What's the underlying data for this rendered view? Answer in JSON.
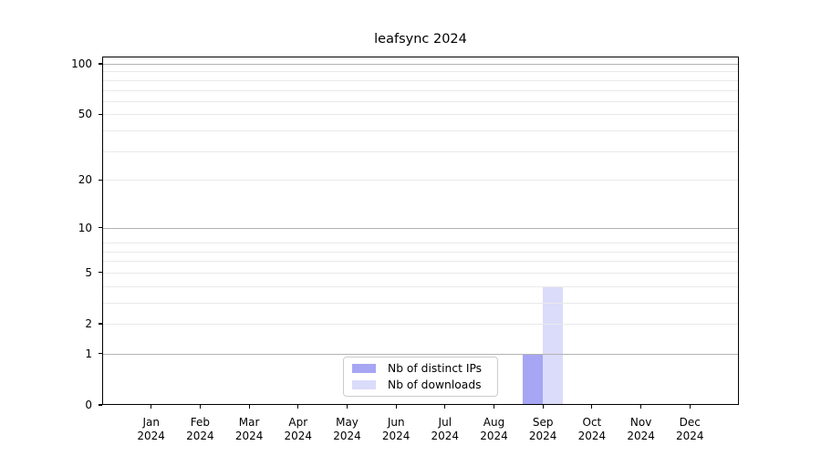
{
  "chart_data": {
    "type": "bar",
    "title": "leafsync 2024",
    "months": [
      "Jan",
      "Feb",
      "Mar",
      "Apr",
      "May",
      "Jun",
      "Jul",
      "Aug",
      "Sep",
      "Oct",
      "Nov",
      "Dec"
    ],
    "year": "2024",
    "series": [
      {
        "name": "Nb of distinct IPs",
        "color": "#a6a6f4",
        "values": [
          0,
          0,
          0,
          0,
          0,
          0,
          0,
          0,
          1,
          0,
          0,
          0
        ]
      },
      {
        "name": "Nb of downloads",
        "color": "#dbdbfa",
        "values": [
          0,
          0,
          0,
          0,
          0,
          0,
          0,
          0,
          4,
          0,
          0,
          0
        ]
      }
    ],
    "y_ticks": [
      0,
      1,
      2,
      5,
      10,
      20,
      50,
      100
    ],
    "y_major_dark_ticks": [
      1,
      10,
      100
    ],
    "y_minor_gridlines": [
      3,
      4,
      6,
      7,
      8,
      30,
      40,
      60,
      70,
      80,
      90
    ],
    "y_scale": "log10(1+v)",
    "ylim": [
      0,
      110
    ],
    "grid": true,
    "legend_position": "lower center",
    "colors": {
      "major_grid": "#b3b3b3",
      "minor_grid": "#e9e9e9",
      "axis": "#000000",
      "legend_border": "#cccccc"
    }
  }
}
